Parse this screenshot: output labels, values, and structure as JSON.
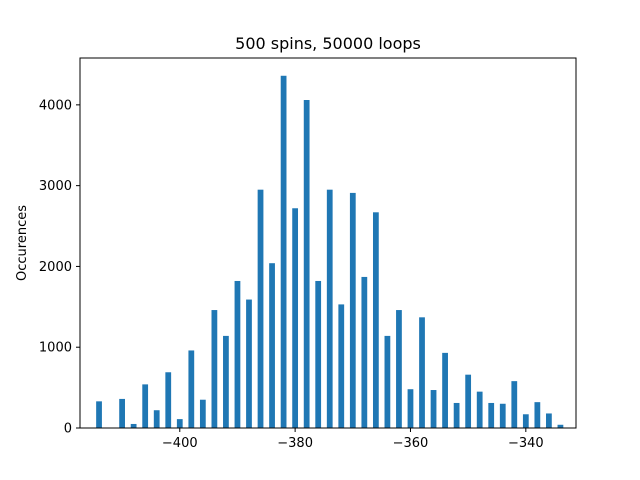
{
  "chart_data": {
    "type": "bar",
    "title": "500 spins, 50000 loops",
    "xlabel": "",
    "ylabel": "Occurences",
    "xlim": [
      -417.3,
      -331.3
    ],
    "ylim": [
      0,
      4580
    ],
    "grid": false,
    "bar_color": "#1f77b4",
    "xticks": [
      -400,
      -380,
      -360,
      -340
    ],
    "yticks": [
      0,
      1000,
      2000,
      3000,
      4000
    ],
    "x": [
      -414,
      -410,
      -408,
      -406,
      -404,
      -402,
      -400,
      -398,
      -396,
      -394,
      -392,
      -390,
      -388,
      -386,
      -384,
      -382,
      -380,
      -378,
      -376,
      -374,
      -372,
      -370,
      -368,
      -366,
      -364,
      -362,
      -360,
      -358,
      -356,
      -354,
      -352,
      -350,
      -348,
      -346,
      -344,
      -342,
      -340,
      -338,
      -336,
      -334
    ],
    "values": [
      330,
      360,
      50,
      540,
      220,
      690,
      110,
      960,
      350,
      1460,
      1140,
      1820,
      1590,
      2950,
      2040,
      4360,
      2720,
      4060,
      1820,
      2950,
      1530,
      2910,
      1870,
      2670,
      1140,
      1460,
      480,
      1370,
      470,
      930,
      310,
      660,
      450,
      310,
      300,
      580,
      170,
      320,
      180,
      40
    ]
  }
}
